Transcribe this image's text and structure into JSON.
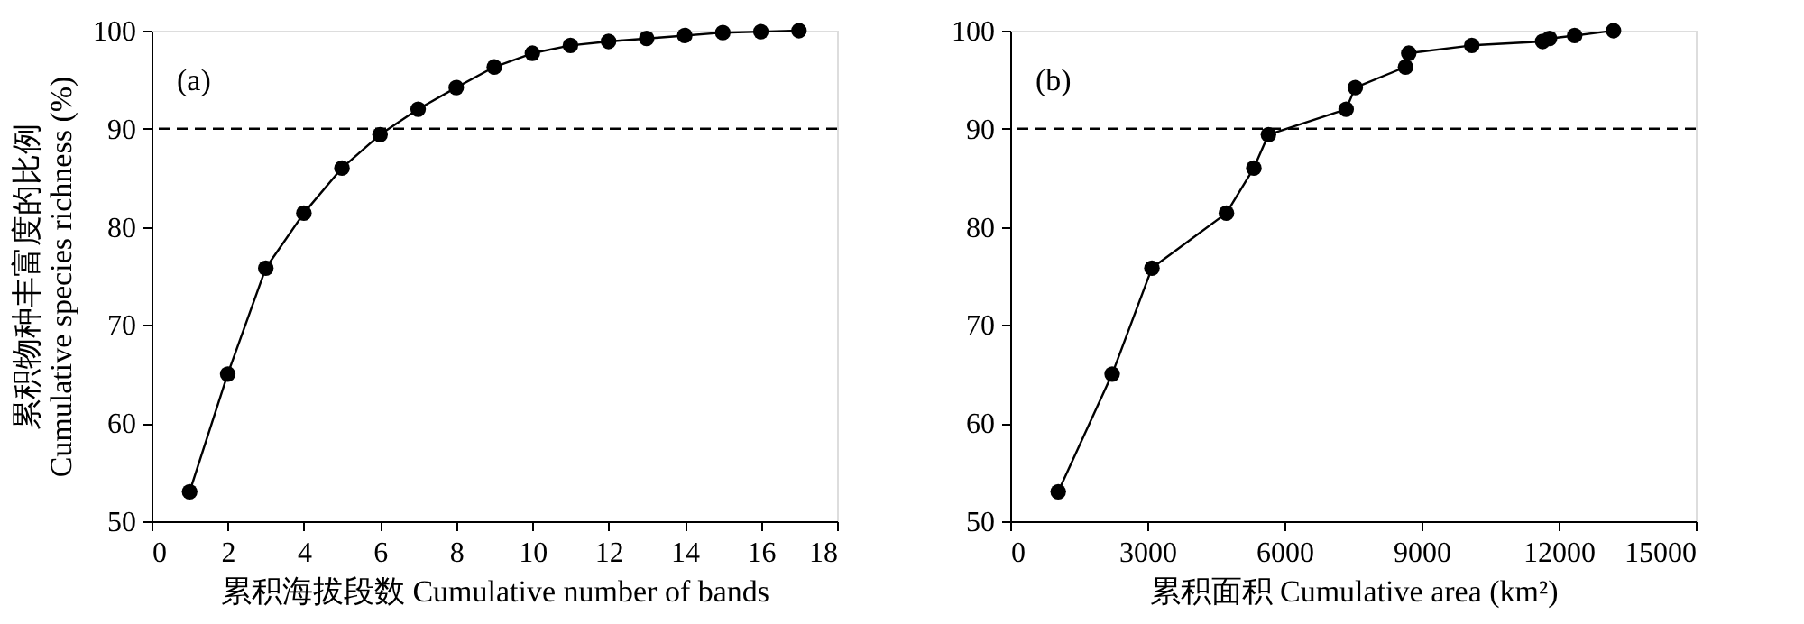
{
  "chart_data": [
    {
      "type": "line",
      "xlabel": "累积海拔段数 Cumulative number of bands",
      "ylabel": "累积物种丰富度的比例\nCumulative species richness (%)",
      "annotations": [
        "(a)"
      ],
      "marker": "circle",
      "line_style": "solid",
      "grid": false,
      "x": [
        1,
        2,
        3,
        4,
        5,
        6,
        7,
        8,
        9,
        10,
        11,
        12,
        13,
        14,
        15,
        16,
        17
      ],
      "series": [
        {
          "color": "#000000",
          "values": [
            53,
            65,
            75.8,
            81.4,
            86,
            89.4,
            92,
            94.2,
            96.3,
            97.7,
            98.5,
            98.9,
            99.2,
            99.5,
            99.8,
            99.9,
            100
          ]
        }
      ],
      "xlim": [
        0,
        18
      ],
      "xticks": [
        0,
        2,
        4,
        6,
        8,
        10,
        12,
        14,
        16,
        18
      ],
      "ylim": [
        50,
        100
      ],
      "yticks": [
        50,
        60,
        70,
        80,
        90,
        100
      ],
      "ref_lines": [
        {
          "axis": "y",
          "value": 90,
          "line_style": "dashed",
          "color": "#000000"
        }
      ]
    },
    {
      "type": "line",
      "xlabel": "累积面积 Cumulative area (km²)",
      "annotations": [
        "(b)"
      ],
      "marker": "circle",
      "line_style": "solid",
      "grid": false,
      "x": [
        1050,
        2230,
        3100,
        4730,
        5330,
        5650,
        7350,
        7550,
        8650,
        8720,
        10100,
        11650,
        11800,
        12350,
        13200
      ],
      "series": [
        {
          "color": "#000000",
          "values": [
            53,
            65,
            75.8,
            81.4,
            86,
            89.4,
            92,
            94.2,
            96.3,
            97.7,
            98.5,
            98.9,
            99.2,
            99.5,
            100
          ]
        }
      ],
      "xlim": [
        0,
        15000
      ],
      "xticks": [
        0,
        3000,
        6000,
        9000,
        12000,
        15000
      ],
      "ylim": [
        50,
        100
      ],
      "yticks": [
        50,
        60,
        70,
        80,
        90,
        100
      ],
      "ref_lines": [
        {
          "axis": "y",
          "value": 90,
          "line_style": "dashed",
          "color": "#000000"
        }
      ]
    }
  ]
}
